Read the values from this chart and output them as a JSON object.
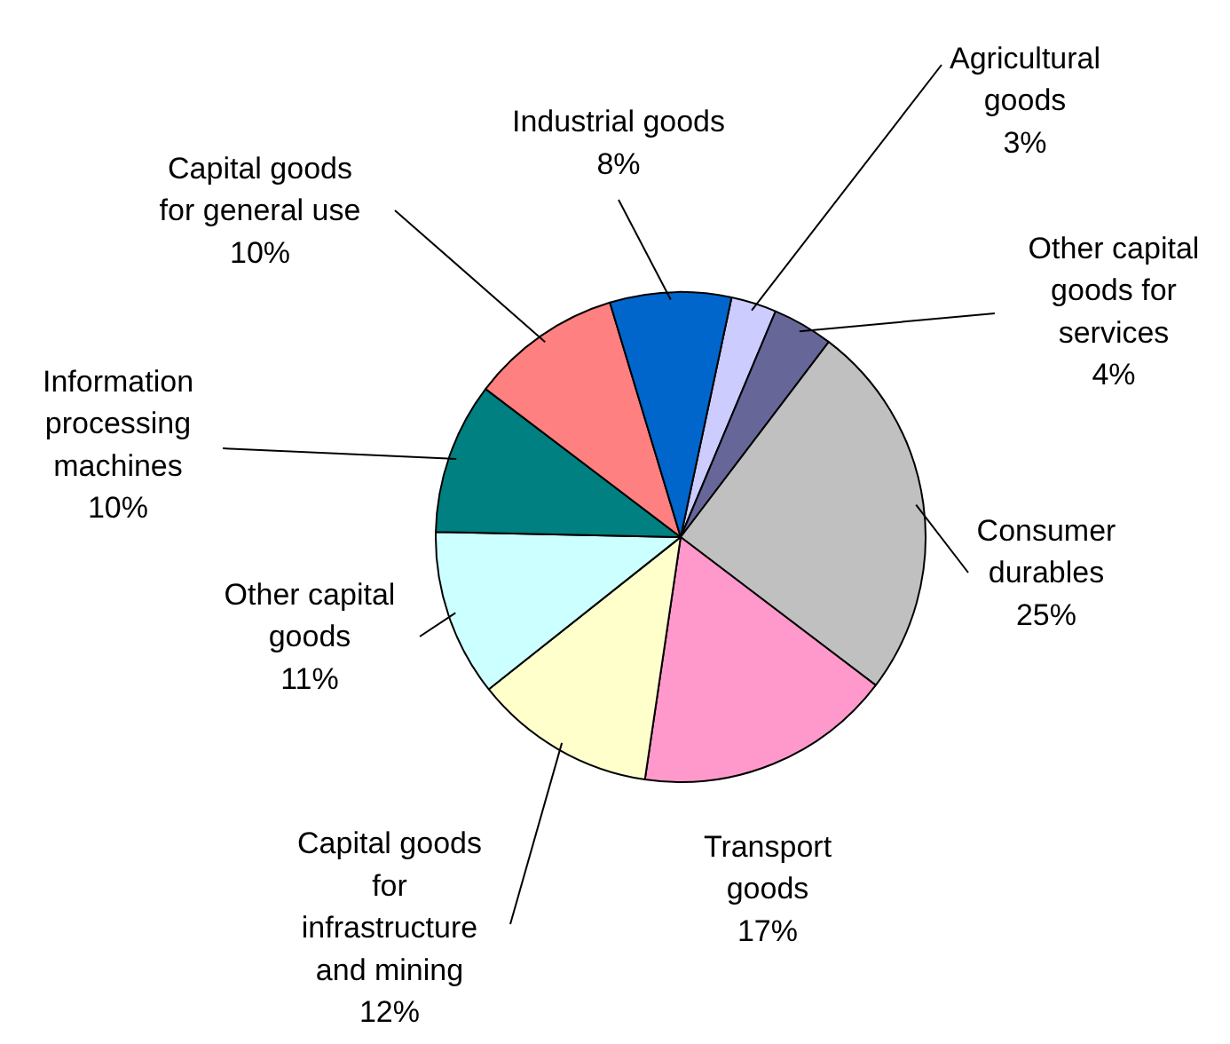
{
  "chart_data": {
    "type": "pie",
    "categories": [
      "Agricultural\ngoods",
      "Other capital\ngoods for\nservices",
      "Consumer\ndurables",
      "Transport\ngoods",
      "Capital goods\nfor\ninfrastructure\nand mining",
      "Other capital\ngoods",
      "Information\nprocessing\nmachines",
      "Capital goods\nfor general use",
      "Industrial goods"
    ],
    "values": [
      3,
      4,
      25,
      17,
      12,
      11,
      10,
      10,
      8
    ],
    "value_labels": [
      "3%",
      "4%",
      "25%",
      "17%",
      "12%",
      "11%",
      "10%",
      "10%",
      "8%"
    ],
    "colors": [
      "#ccccff",
      "#666699",
      "#c0c0c0",
      "#ff99cc",
      "#ffffcc",
      "#ccffff",
      "#008080",
      "#ff8080",
      "#0066cc"
    ]
  }
}
